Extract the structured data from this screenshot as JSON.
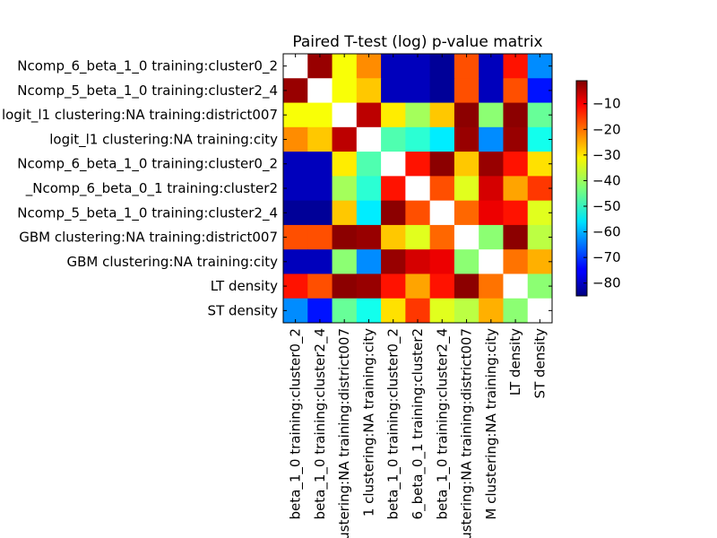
{
  "chart_data": {
    "type": "heatmap",
    "title": "Paired T-test (log) p-value matrix",
    "row_labels": [
      "Ncomp_6_beta_1_0 training:cluster0_2",
      "Ncomp_5_beta_1_0 training:cluster2_4",
      "logit_l1 clustering:NA training:district007",
      "logit_l1 clustering:NA training:city",
      "Ncomp_6_beta_1_0 training:cluster0_2",
      "_Ncomp_6_beta_0_1 training:cluster2",
      "Ncomp_5_beta_1_0 training:cluster2_4",
      "GBM clustering:NA training:district007",
      "GBM clustering:NA training:city",
      "LT density",
      "ST density"
    ],
    "col_labels": [
      "beta_1_0 training:cluster0_2",
      "beta_1_0 training:cluster2_4",
      "clustering:NA training:district007",
      "1 clustering:NA training:city",
      "beta_1_0 training:cluster0_2",
      "6_beta_0_1 training:cluster2",
      "beta_1_0 training:cluster2_4",
      "clustering:NA training:district007",
      "M clustering:NA training:city",
      "LT density",
      "ST density"
    ],
    "values": [
      [
        null,
        -3,
        -33,
        -23,
        -80,
        -80,
        -83,
        -18,
        -80,
        -13,
        -63
      ],
      [
        -3,
        null,
        -33,
        -28,
        -80,
        -80,
        -83,
        -18,
        -80,
        -18,
        -73
      ],
      [
        -33,
        -33,
        null,
        -6,
        -31,
        -40,
        -28,
        -2,
        -42,
        -2,
        -45
      ],
      [
        -23,
        -28,
        -6,
        null,
        -47,
        -50,
        -55,
        -3,
        -63,
        -3,
        -52
      ],
      [
        -80,
        -80,
        -31,
        -47,
        null,
        -13,
        -2,
        -28,
        -3,
        -13,
        -30
      ],
      [
        -80,
        -80,
        -40,
        -50,
        -13,
        null,
        -18,
        -35,
        -8,
        -25,
        -16
      ],
      [
        -83,
        -83,
        -28,
        -55,
        -2,
        -18,
        null,
        -20,
        -10,
        -13,
        -35
      ],
      [
        -18,
        -18,
        -2,
        -3,
        -28,
        -35,
        -20,
        null,
        -42,
        -2,
        -38
      ],
      [
        -80,
        -80,
        -42,
        -63,
        -3,
        -8,
        -10,
        -42,
        null,
        -21,
        -26
      ],
      [
        -13,
        -18,
        -2,
        -3,
        -13,
        -25,
        -13,
        -2,
        -21,
        null,
        -42
      ],
      [
        -63,
        -73,
        -45,
        -52,
        -30,
        -16,
        -35,
        -38,
        -26,
        -42,
        null
      ]
    ],
    "colormap": "jet",
    "vmin": -85,
    "vmax": -1,
    "colorbar": {
      "ticks": [
        -10,
        -20,
        -30,
        -40,
        -50,
        -60,
        -70,
        -80
      ],
      "labels": [
        "−10",
        "−20",
        "−30",
        "−40",
        "−50",
        "−60",
        "−70",
        "−80"
      ]
    },
    "diagonal_color": "#ffffff",
    "grid": false,
    "legend": "colorbar-right"
  }
}
